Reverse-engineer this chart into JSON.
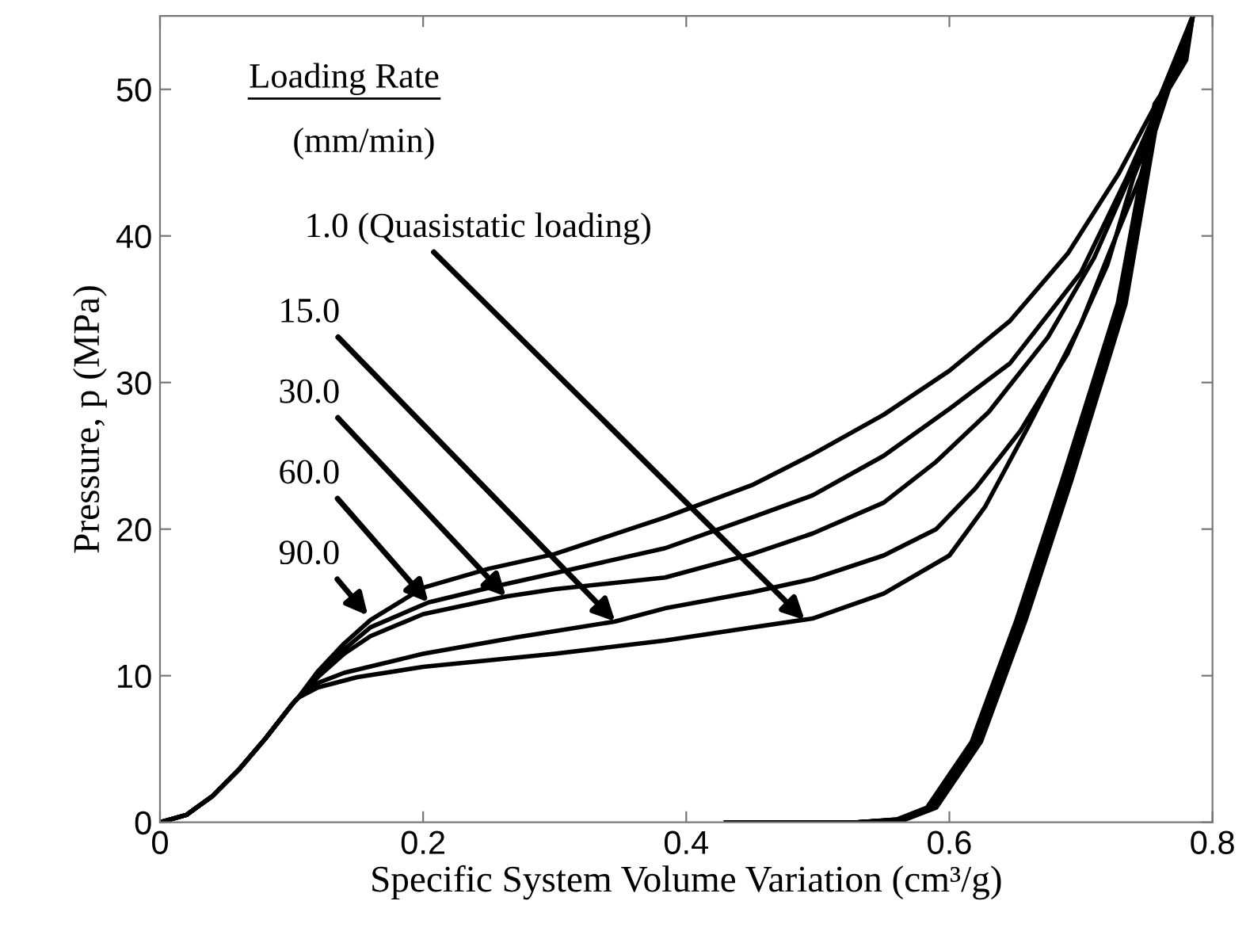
{
  "chart_data": {
    "type": "line",
    "xlabel": "Specific System Volume Variation (cm³/g)",
    "ylabel": "Pressure, p (MPa)",
    "xlim": [
      0,
      0.8
    ],
    "ylim": [
      0,
      55
    ],
    "xticks": [
      0,
      0.2,
      0.4,
      0.6,
      0.8
    ],
    "yticks": [
      0,
      10,
      20,
      30,
      40,
      50
    ],
    "grid": false,
    "marker": "none",
    "line_style": "solid",
    "series": [
      {
        "color": "#000000",
        "x": [
          0,
          0.02,
          0.04,
          0.06,
          0.08,
          0.1,
          0.105,
          0.12,
          0.14,
          0.16,
          0.2,
          0.25,
          0.3,
          0.384,
          0.45,
          0.496,
          0.55,
          0.6,
          0.646,
          0.69,
          0.729,
          0.76,
          0.785,
          0.778,
          0.758,
          0.731,
          0.689,
          0.654,
          0.62,
          0.586,
          0.563,
          0.53,
          0.45
        ],
        "values": [
          0,
          0.5,
          1.8,
          3.6,
          5.7,
          8,
          8.5,
          10.3,
          12.2,
          13.8,
          16.0,
          17.3,
          18.3,
          20.8,
          23,
          25.1,
          27.8,
          30.8,
          34.2,
          38.8,
          44.3,
          49.5,
          55,
          52,
          49,
          35.4,
          23.4,
          13.8,
          5.5,
          1,
          0.2,
          0,
          0
        ]
      },
      {
        "color": "#000000",
        "x": [
          0,
          0.02,
          0.04,
          0.06,
          0.08,
          0.1,
          0.105,
          0.12,
          0.14,
          0.16,
          0.204,
          0.25,
          0.3,
          0.384,
          0.45,
          0.496,
          0.55,
          0.6,
          0.646,
          0.7,
          0.735,
          0.762,
          0.785,
          0.778,
          0.756,
          0.728,
          0.686,
          0.651,
          0.617,
          0.583,
          0.56,
          0.53,
          0.44
        ],
        "values": [
          0,
          0.5,
          1.8,
          3.6,
          5.7,
          8,
          8.5,
          10,
          11.8,
          13.3,
          15.0,
          16.0,
          17.0,
          18.7,
          20.8,
          22.3,
          25,
          28.2,
          31.3,
          37.5,
          44,
          49.5,
          55,
          52,
          49,
          35.4,
          23.4,
          13.8,
          5.5,
          1,
          0.2,
          0,
          0
        ]
      },
      {
        "color": "#000000",
        "x": [
          0,
          0.02,
          0.04,
          0.06,
          0.08,
          0.1,
          0.105,
          0.12,
          0.14,
          0.16,
          0.2,
          0.263,
          0.3,
          0.384,
          0.45,
          0.496,
          0.55,
          0.59,
          0.63,
          0.675,
          0.71,
          0.737,
          0.763,
          0.785,
          0.779,
          0.759,
          0.733,
          0.692,
          0.657,
          0.623,
          0.589,
          0.566,
          0.53,
          0.43
        ],
        "values": [
          0,
          0.5,
          1.8,
          3.6,
          5.7,
          8,
          8.5,
          9.9,
          11.5,
          12.7,
          14.2,
          15.4,
          15.9,
          16.7,
          18.3,
          19.7,
          21.8,
          24.6,
          28,
          33.1,
          38.5,
          44,
          49.5,
          55,
          52,
          49,
          35.4,
          23.4,
          13.8,
          5.5,
          1,
          0.2,
          0,
          0
        ]
      },
      {
        "color": "#000000",
        "x": [
          0,
          0.02,
          0.04,
          0.06,
          0.08,
          0.1,
          0.105,
          0.12,
          0.14,
          0.2,
          0.27,
          0.346,
          0.384,
          0.45,
          0.496,
          0.55,
          0.59,
          0.62,
          0.654,
          0.69,
          0.72,
          0.74,
          0.764,
          0.785,
          0.777,
          0.757,
          0.73,
          0.688,
          0.653,
          0.619,
          0.585,
          0.562,
          0.53,
          0.46
        ],
        "values": [
          0,
          0.5,
          1.8,
          3.6,
          5.7,
          8,
          8.5,
          9.5,
          10.2,
          11.5,
          12.6,
          13.7,
          14.6,
          15.7,
          16.6,
          18.2,
          20,
          22.8,
          26.7,
          32,
          38,
          44,
          49.5,
          55,
          52,
          49,
          35.4,
          23.4,
          13.8,
          5.5,
          1,
          0.2,
          0,
          0
        ]
      },
      {
        "color": "#000000",
        "x": [
          0,
          0.02,
          0.04,
          0.06,
          0.08,
          0.1,
          0.105,
          0.12,
          0.15,
          0.2,
          0.3,
          0.384,
          0.45,
          0.496,
          0.55,
          0.6,
          0.627,
          0.66,
          0.7,
          0.72,
          0.745,
          0.765,
          0.785,
          0.78,
          0.76,
          0.734,
          0.693,
          0.658,
          0.624,
          0.59,
          0.567,
          0.53,
          0.47
        ],
        "values": [
          0,
          0.5,
          1.8,
          3.6,
          5.7,
          8,
          8.5,
          9.2,
          9.9,
          10.6,
          11.5,
          12.4,
          13.3,
          13.9,
          15.6,
          18.2,
          21.5,
          27,
          34,
          38.5,
          44,
          49.5,
          55,
          52,
          49,
          35.4,
          23.4,
          13.8,
          5.5,
          1,
          0.2,
          0,
          0
        ]
      }
    ],
    "annotations": [
      "Loading Rate",
      "(mm/min)",
      {
        "text": "1.0 (Quasistatic loading)",
        "x": 0.49,
        "y": 13.8
      },
      {
        "text": "15.0",
        "x": 0.346,
        "y": 13.7
      },
      {
        "text": "30.0",
        "x": 0.263,
        "y": 15.4
      },
      {
        "text": "60.0",
        "x": 0.204,
        "y": 15.0
      },
      {
        "text": "90.0",
        "x": 0.158,
        "y": 14.1
      }
    ]
  }
}
